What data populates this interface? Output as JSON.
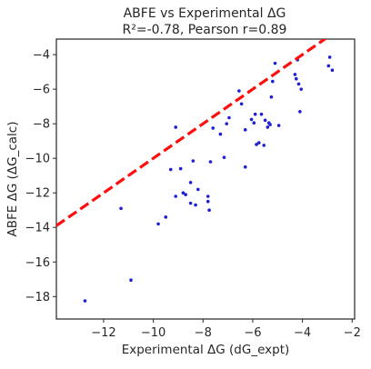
{
  "chart_data": {
    "type": "scatter",
    "title": "ABFE vs Experimental ΔG",
    "subtitle": "R²=-0.78, Pearson r=0.89",
    "xlabel": "Experimental ΔG (dG_expt)",
    "ylabel": "ABFE ΔG (ΔG_calc)",
    "xlim": [
      -13.9,
      -1.9
    ],
    "ylim": [
      -19.3,
      -3.1
    ],
    "xticks": [
      -12,
      -10,
      -8,
      -6,
      -4,
      -2
    ],
    "yticks": [
      -18,
      -16,
      -14,
      -12,
      -10,
      -8,
      -6,
      -4
    ],
    "xtick_labels": [
      "−12",
      "−10",
      "−8",
      "−6",
      "−4",
      "−2"
    ],
    "ytick_labels": [
      "−18",
      "−16",
      "−14",
      "−12",
      "−10",
      "−8",
      "−6",
      "−4"
    ],
    "grid": false,
    "series": [
      {
        "kind": "points",
        "color": "#1f1fd6",
        "points": [
          [
            -12.75,
            -18.25
          ],
          [
            -10.9,
            -17.05
          ],
          [
            -11.3,
            -12.9
          ],
          [
            -9.8,
            -13.8
          ],
          [
            -9.5,
            -13.4
          ],
          [
            -9.3,
            -10.65
          ],
          [
            -9.1,
            -12.2
          ],
          [
            -8.9,
            -10.6
          ],
          [
            -8.8,
            -12.0
          ],
          [
            -8.7,
            -12.1
          ],
          [
            -8.5,
            -12.6
          ],
          [
            -8.5,
            -11.4
          ],
          [
            -8.4,
            -10.15
          ],
          [
            -8.3,
            -12.7
          ],
          [
            -8.2,
            -11.8
          ],
          [
            -7.8,
            -12.2
          ],
          [
            -7.8,
            -12.5
          ],
          [
            -7.75,
            -13.0
          ],
          [
            -7.7,
            -10.2
          ],
          [
            -9.1,
            -8.2
          ],
          [
            -7.6,
            -8.25
          ],
          [
            -7.3,
            -8.6
          ],
          [
            -7.15,
            -9.95
          ],
          [
            -7.05,
            -8.0
          ],
          [
            -6.95,
            -7.65
          ],
          [
            -6.55,
            -6.1
          ],
          [
            -6.45,
            -6.85
          ],
          [
            -6.3,
            -10.5
          ],
          [
            -6.3,
            -8.35
          ],
          [
            -6.05,
            -7.75
          ],
          [
            -5.95,
            -7.95
          ],
          [
            -5.9,
            -7.45
          ],
          [
            -5.85,
            -9.2
          ],
          [
            -5.75,
            -9.1
          ],
          [
            -5.65,
            -7.45
          ],
          [
            -5.55,
            -9.25
          ],
          [
            -5.5,
            -7.8
          ],
          [
            -5.4,
            -8.2
          ],
          [
            -5.35,
            -7.95
          ],
          [
            -5.3,
            -8.05
          ],
          [
            -5.25,
            -6.45
          ],
          [
            -5.2,
            -5.55
          ],
          [
            -5.1,
            -4.5
          ],
          [
            -4.95,
            -8.1
          ],
          [
            -4.3,
            -5.15
          ],
          [
            -4.25,
            -5.4
          ],
          [
            -4.2,
            -4.3
          ],
          [
            -4.15,
            -5.7
          ],
          [
            -4.1,
            -7.3
          ],
          [
            -4.05,
            -6.0
          ],
          [
            -2.95,
            -4.65
          ],
          [
            -2.9,
            -4.15
          ],
          [
            -2.8,
            -4.9
          ]
        ]
      },
      {
        "kind": "reference-line",
        "color": "#ff0d0d",
        "style": "dashed",
        "line": [
          [
            -13.9,
            -13.9
          ],
          [
            -1.9,
            -1.9
          ]
        ]
      }
    ]
  }
}
